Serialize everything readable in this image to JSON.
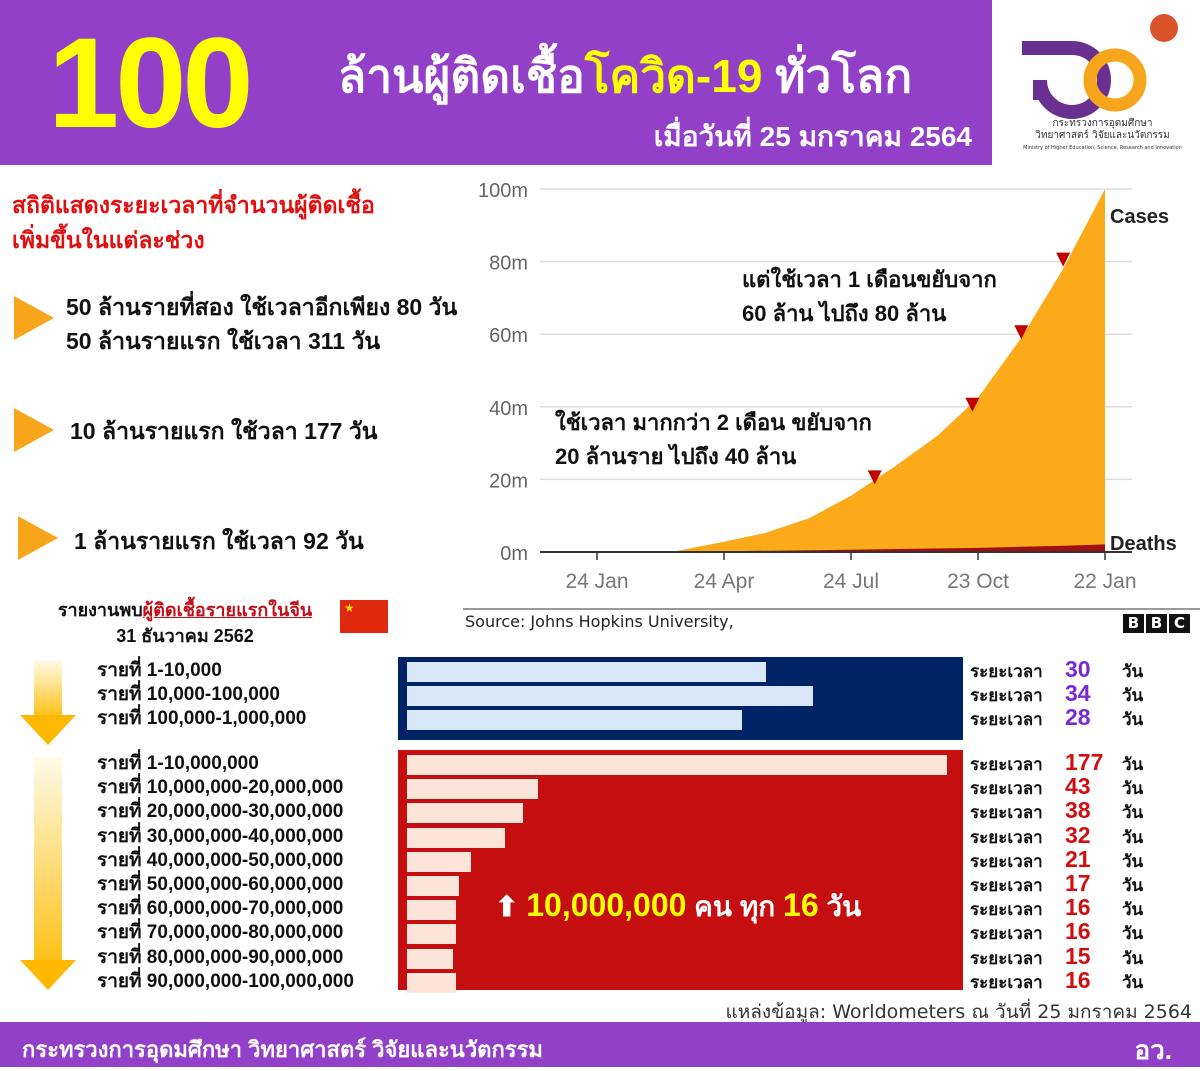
{
  "header": {
    "big_number": "100",
    "title_part1": "ล้านผู้ติดเชื้อ",
    "title_part2": "โควิด-19",
    "title_part3": " ทั่วโลก",
    "date": "เมื่อวันที่ 25 มกราคม 2564"
  },
  "logo": {
    "line1": "กระทรวงการอุดมศึกษา",
    "line2": "วิทยาศาสตร์ วิจัยและนวัตกรรม",
    "line3": "Ministry of Higher Education, Science, Research and Innovation"
  },
  "stats": {
    "heading1": "สถิติแสดงระยะเวลาที่จำนวนผู้ติดเชื้อ",
    "heading2": "เพิ่มขึ้นในแต่ละช่วง",
    "bullets": [
      {
        "lines": [
          "50 ล้านรายที่สอง ใช้เวลาอีกเพียง 80 วัน",
          "50 ล้านรายแรก ใช้เวลา 311 วัน"
        ]
      },
      {
        "lines": [
          "10 ล้านรายแรก ใช้วลา 177 วัน"
        ]
      },
      {
        "lines": [
          "1 ล้านรายแรก ใช้เวลา 92 วัน"
        ]
      }
    ]
  },
  "first_case": {
    "prefix": "รายงานพบ",
    "highlight": "ผู้ติดเชื้อรายแรกในจีน",
    "date": "31 ธันวาคม 2562"
  },
  "chart_data": [
    {
      "type": "area",
      "xlabel": "",
      "ylabel": "",
      "x_ticks": [
        "24 Jan",
        "24 Apr",
        "24 Jul",
        "23 Oct",
        "22 Jan"
      ],
      "y_ticks": [
        "0m",
        "20m",
        "40m",
        "60m",
        "80m",
        "100m"
      ],
      "ylim": [
        0,
        100
      ],
      "grid": true,
      "series": [
        {
          "name": "Cases",
          "color": "#fcaa1a",
          "points": [
            [
              "2020-01-24",
              0
            ],
            [
              "2020-03-20",
              0.2
            ],
            [
              "2020-04-24",
              2.8
            ],
            [
              "2020-05-24",
              5.3
            ],
            [
              "2020-06-24",
              9.3
            ],
            [
              "2020-07-24",
              15.5
            ],
            [
              "2020-08-24",
              23.5
            ],
            [
              "2020-09-24",
              32
            ],
            [
              "2020-10-23",
              42.5
            ],
            [
              "2020-11-23",
              59
            ],
            [
              "2020-12-23",
              78
            ],
            [
              "2021-01-22",
              100
            ]
          ]
        },
        {
          "name": "Deaths",
          "color": "#a01010",
          "points": [
            [
              "2020-01-24",
              0
            ],
            [
              "2020-04-24",
              0.2
            ],
            [
              "2020-07-24",
              0.63
            ],
            [
              "2020-10-23",
              1.14
            ],
            [
              "2020-12-23",
              1.73
            ],
            [
              "2021-01-22",
              2.1
            ]
          ]
        }
      ],
      "markers": [
        [
          "2020-08-10",
          20
        ],
        [
          "2020-10-19",
          40
        ],
        [
          "2020-11-23",
          60
        ],
        [
          "2020-12-23",
          80
        ]
      ],
      "annotations": [
        {
          "lines": [
            "แต่ใช้เวลา 1 เดือนขยับจาก",
            "60 ล้าน ไปถึง 80 ล้าน"
          ]
        },
        {
          "lines": [
            "ใช้เวลา มากกว่า 2 เดือน ขยับจาก",
            "20 ล้านราย ไปถึง 40 ล้าน"
          ]
        }
      ],
      "source": "Source: Johns Hopkins University, ",
      "brand": [
        "B",
        "B",
        "C"
      ]
    },
    {
      "type": "bar",
      "orientation": "horizontal",
      "unit": "วัน",
      "label_prefix": "ระยะเวลา",
      "color": "#002366",
      "bar_color": "#d9e8f8",
      "value_color": "#7a2ad0",
      "categories": [
        "รายที่ 1-10,000",
        "รายที่ 10,000-100,000",
        "รายที่ 100,000-1,000,000"
      ],
      "values": [
        30,
        34,
        28
      ]
    },
    {
      "type": "bar",
      "orientation": "horizontal",
      "unit": "วัน",
      "label_prefix": "ระยะเวลา",
      "color": "#c40e10",
      "bar_color": "#fde4d8",
      "value_color": "#d01010",
      "categories": [
        "รายที่ 1-10,000,000",
        "รายที่ 10,000,000-20,000,000",
        "รายที่ 20,000,000-30,000,000",
        "รายที่ 30,000,000-40,000,000",
        "รายที่ 40,000,000-50,000,000",
        "รายที่ 50,000,000-60,000,000",
        "รายที่ 60,000,000-70,000,000",
        "รายที่ 70,000,000-80,000,000",
        "รายที่ 80,000,000-90,000,000",
        "รายที่ 90,000,000-100,000,000"
      ],
      "values": [
        177,
        43,
        38,
        32,
        21,
        17,
        16,
        16,
        15,
        16
      ],
      "annotation": {
        "number": "10,000,000",
        "word1": " คน ทุก ",
        "days": "16",
        "word2": " วัน"
      }
    }
  ],
  "data_source": "แหล่งข้อมูล: Worldometers ณ วันที่ 25 มกราคม 2564",
  "footer": {
    "ministry": "กระทรวงการอุดมศึกษา วิทยาศาสตร์ วิจัยและนวัตกรรม",
    "abbr": "อว."
  }
}
